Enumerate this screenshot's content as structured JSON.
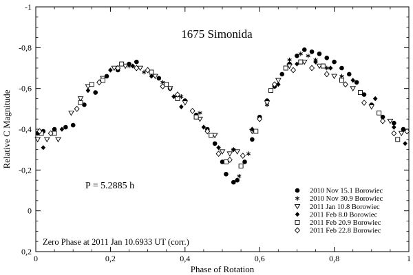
{
  "chart_data": {
    "type": "scatter",
    "title": "1675 Simonida",
    "xlabel": "Phase of Rotation",
    "ylabel": "Relative C Magnitude",
    "xlim": [
      0,
      1
    ],
    "ylim": [
      -1,
      0.2
    ],
    "y_inverted": true,
    "x_ticks": [
      {
        "value": 0,
        "label": "0"
      },
      {
        "value": 0.2,
        "label": "0,2"
      },
      {
        "value": 0.4,
        "label": "0,4"
      },
      {
        "value": 0.6,
        "label": "0,6"
      },
      {
        "value": 0.8,
        "label": "0,8"
      },
      {
        "value": 1.0,
        "label": "1"
      }
    ],
    "y_ticks": [
      {
        "value": -1,
        "label": "-1"
      },
      {
        "value": -0.8,
        "label": "-0,8"
      },
      {
        "value": -0.6,
        "label": "-0,6"
      },
      {
        "value": -0.4,
        "label": "-0,4"
      },
      {
        "value": -0.2,
        "label": "-0,2"
      },
      {
        "value": 0,
        "label": "0"
      },
      {
        "value": 0.2,
        "label": "0,2"
      }
    ],
    "annotations": {
      "period": "P = 5.2885 h",
      "zero_phase": "Zero Phase at 2011 Jan 10.6933 UT (corr.)"
    },
    "legend_position": "bottom-right",
    "series": [
      {
        "name": "2010 Nov 15.1 Borowiec",
        "marker": "filled-circle",
        "points": [
          [
            0.005,
            -0.38
          ],
          [
            0.02,
            -0.39
          ],
          [
            0.05,
            -0.4
          ],
          [
            0.08,
            -0.41
          ],
          [
            0.1,
            -0.42
          ],
          [
            0.13,
            -0.52
          ],
          [
            0.16,
            -0.58
          ],
          [
            0.19,
            -0.66
          ],
          [
            0.22,
            -0.69
          ],
          [
            0.25,
            -0.72
          ],
          [
            0.27,
            -0.73
          ],
          [
            0.33,
            -0.65
          ],
          [
            0.36,
            -0.6
          ],
          [
            0.4,
            -0.54
          ],
          [
            0.43,
            -0.47
          ],
          [
            0.46,
            -0.4
          ],
          [
            0.48,
            -0.33
          ],
          [
            0.5,
            -0.24
          ],
          [
            0.51,
            -0.18
          ],
          [
            0.53,
            -0.14
          ],
          [
            0.54,
            -0.15
          ],
          [
            0.56,
            -0.24
          ],
          [
            0.58,
            -0.35
          ],
          [
            0.6,
            -0.46
          ],
          [
            0.62,
            -0.54
          ],
          [
            0.64,
            -0.61
          ],
          [
            0.66,
            -0.67
          ],
          [
            0.68,
            -0.72
          ],
          [
            0.7,
            -0.76
          ],
          [
            0.72,
            -0.79
          ],
          [
            0.74,
            -0.78
          ],
          [
            0.76,
            -0.77
          ],
          [
            0.78,
            -0.75
          ],
          [
            0.8,
            -0.73
          ],
          [
            0.82,
            -0.7
          ],
          [
            0.84,
            -0.67
          ],
          [
            0.86,
            -0.63
          ],
          [
            0.88,
            -0.57
          ],
          [
            0.9,
            -0.52
          ],
          [
            0.93,
            -0.46
          ],
          [
            0.96,
            -0.43
          ],
          [
            0.985,
            -0.4
          ]
        ]
      },
      {
        "name": "2010 Nov 30.9 Borowiec",
        "marker": "asterisk",
        "points": [
          [
            0.25,
            -0.71
          ],
          [
            0.29,
            -0.68
          ],
          [
            0.34,
            -0.63
          ],
          [
            0.39,
            -0.56
          ],
          [
            0.44,
            -0.48
          ],
          [
            0.53,
            -0.3
          ],
          [
            0.545,
            -0.17
          ],
          [
            0.57,
            -0.28
          ],
          [
            0.62,
            -0.52
          ],
          [
            0.68,
            -0.74
          ],
          [
            0.71,
            -0.77
          ],
          [
            0.73,
            -0.76
          ],
          [
            0.75,
            -0.74
          ],
          [
            0.78,
            -0.7
          ],
          [
            0.82,
            -0.66
          ]
        ]
      },
      {
        "name": "2011 Jan 10.8 Borowiec",
        "marker": "open-triangle-down",
        "points": [
          [
            0.005,
            -0.35
          ],
          [
            0.03,
            -0.35
          ],
          [
            0.06,
            -0.35
          ],
          [
            0.095,
            -0.48
          ],
          [
            0.12,
            -0.55
          ],
          [
            0.14,
            -0.61
          ],
          [
            0.18,
            -0.65
          ],
          [
            0.21,
            -0.7
          ],
          [
            0.24,
            -0.71
          ],
          [
            0.28,
            -0.7
          ],
          [
            0.32,
            -0.66
          ],
          [
            0.36,
            -0.6
          ],
          [
            0.4,
            -0.53
          ],
          [
            0.44,
            -0.45
          ],
          [
            0.48,
            -0.37
          ],
          [
            0.5,
            -0.29
          ],
          [
            0.52,
            -0.28
          ],
          [
            0.54,
            -0.29
          ],
          [
            0.58,
            -0.39
          ],
          [
            0.62,
            -0.53
          ],
          [
            0.65,
            -0.64
          ],
          [
            0.68,
            -0.71
          ],
          [
            0.72,
            -0.73
          ],
          [
            0.76,
            -0.71
          ],
          [
            0.8,
            -0.66
          ],
          [
            0.85,
            -0.6
          ],
          [
            0.9,
            -0.51
          ],
          [
            0.95,
            -0.44
          ],
          [
            0.98,
            -0.38
          ]
        ]
      },
      {
        "name": "2011 Feb 8.0 Borowiec",
        "marker": "filled-diamond",
        "points": [
          [
            0.02,
            -0.31
          ],
          [
            0.07,
            -0.4
          ],
          [
            0.14,
            -0.59
          ],
          [
            0.2,
            -0.69
          ],
          [
            0.26,
            -0.71
          ],
          [
            0.31,
            -0.66
          ],
          [
            0.37,
            -0.56
          ],
          [
            0.39,
            -0.51
          ],
          [
            0.45,
            -0.41
          ],
          [
            0.49,
            -0.31
          ],
          [
            0.53,
            -0.3
          ],
          [
            0.58,
            -0.4
          ],
          [
            0.65,
            -0.62
          ],
          [
            0.7,
            -0.72
          ],
          [
            0.75,
            -0.73
          ],
          [
            0.79,
            -0.7
          ],
          [
            0.85,
            -0.64
          ],
          [
            0.91,
            -0.55
          ],
          [
            0.96,
            -0.41
          ],
          [
            0.99,
            -0.33
          ]
        ]
      },
      {
        "name": "2011 Feb 20.9 Borowiec",
        "marker": "open-square",
        "points": [
          [
            0.015,
            -0.38
          ],
          [
            0.05,
            -0.38
          ],
          [
            0.12,
            -0.53
          ],
          [
            0.15,
            -0.62
          ],
          [
            0.18,
            -0.64
          ],
          [
            0.23,
            -0.72
          ],
          [
            0.31,
            -0.68
          ],
          [
            0.35,
            -0.62
          ],
          [
            0.38,
            -0.55
          ],
          [
            0.43,
            -0.46
          ],
          [
            0.47,
            -0.37
          ],
          [
            0.51,
            -0.24
          ],
          [
            0.55,
            -0.22
          ],
          [
            0.59,
            -0.39
          ],
          [
            0.63,
            -0.59
          ],
          [
            0.67,
            -0.7
          ],
          [
            0.71,
            -0.73
          ],
          [
            0.77,
            -0.71
          ],
          [
            0.82,
            -0.64
          ],
          [
            0.87,
            -0.58
          ],
          [
            0.92,
            -0.48
          ],
          [
            0.97,
            -0.35
          ]
        ]
      },
      {
        "name": "2011 Feb 22.8 Borowiec",
        "marker": "open-diamond",
        "points": [
          [
            0.01,
            -0.39
          ],
          [
            0.04,
            -0.38
          ],
          [
            0.11,
            -0.5
          ],
          [
            0.17,
            -0.63
          ],
          [
            0.22,
            -0.7
          ],
          [
            0.27,
            -0.7
          ],
          [
            0.3,
            -0.69
          ],
          [
            0.34,
            -0.61
          ],
          [
            0.38,
            -0.57
          ],
          [
            0.42,
            -0.49
          ],
          [
            0.46,
            -0.39
          ],
          [
            0.49,
            -0.28
          ],
          [
            0.52,
            -0.25
          ],
          [
            0.555,
            -0.27
          ],
          [
            0.6,
            -0.45
          ],
          [
            0.64,
            -0.62
          ],
          [
            0.69,
            -0.69
          ],
          [
            0.74,
            -0.7
          ],
          [
            0.78,
            -0.67
          ],
          [
            0.83,
            -0.62
          ],
          [
            0.88,
            -0.53
          ],
          [
            0.93,
            -0.44
          ],
          [
            0.96,
            -0.38
          ],
          [
            0.995,
            -0.39
          ]
        ]
      }
    ]
  }
}
